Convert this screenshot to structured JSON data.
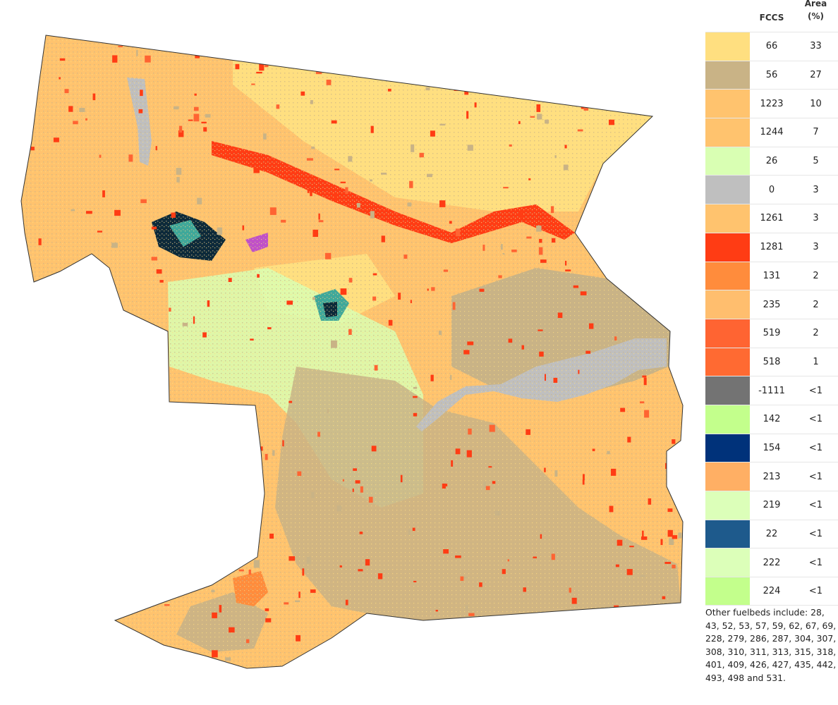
{
  "map": {
    "colors": {
      "fuel_66": "#ffdf80",
      "fuel_56": "#c9b386",
      "fuel_1223": "#ffc36e",
      "fuel_26": "#d9ffb3",
      "fuel_0": "#bfbfbf",
      "fuel_1281": "#ff3c14",
      "fuel_131": "#ff8c3c",
      "fuel_519": "#ff6432",
      "dark_patch": "#0d2a3a",
      "teal_patch": "#3fa89a",
      "magenta_patch": "#c050c8",
      "outline": "#333333"
    }
  },
  "legend": {
    "header_fccs": "FCCS",
    "header_area_line1": "Area",
    "header_area_line2": "(%)",
    "rows": [
      {
        "code": "66",
        "area": "33",
        "color": "#ffdf80"
      },
      {
        "code": "56",
        "area": "27",
        "color": "#c9b386"
      },
      {
        "code": "1223",
        "area": "10",
        "color": "#ffc36e"
      },
      {
        "code": "1244",
        "area": "7",
        "color": "#ffc36e"
      },
      {
        "code": "26",
        "area": "5",
        "color": "#d9ffb3"
      },
      {
        "code": "0",
        "area": "3",
        "color": "#bfbfbf"
      },
      {
        "code": "1261",
        "area": "3",
        "color": "#ffc36e"
      },
      {
        "code": "1281",
        "area": "3",
        "color": "#ff3c14"
      },
      {
        "code": "131",
        "area": "2",
        "color": "#ff8c3c"
      },
      {
        "code": "235",
        "area": "2",
        "color": "#ffbe6e"
      },
      {
        "code": "519",
        "area": "2",
        "color": "#ff6432"
      },
      {
        "code": "518",
        "area": "1",
        "color": "#ff6a32"
      },
      {
        "code": "-1111",
        "area": "<1",
        "color": "#737373"
      },
      {
        "code": "142",
        "area": "<1",
        "color": "#c3ff8c"
      },
      {
        "code": "154",
        "area": "<1",
        "color": "#00327a"
      },
      {
        "code": "213",
        "area": "<1",
        "color": "#ffaf64"
      },
      {
        "code": "219",
        "area": "<1",
        "color": "#dcffb9"
      },
      {
        "code": "22",
        "area": "<1",
        "color": "#1e5a8c"
      },
      {
        "code": "222",
        "area": "<1",
        "color": "#dcffb9"
      },
      {
        "code": "224",
        "area": "<1",
        "color": "#c3ff8c"
      }
    ],
    "note": "Other fuelbeds include: 28, 43, 52, 53, 57, 59, 62, 67, 69, 228, 279, 286, 287, 304, 307, 308, 310, 311, 313, 315, 318, 401, 409, 426, 427, 435, 442, 493, 498 and 531."
  }
}
